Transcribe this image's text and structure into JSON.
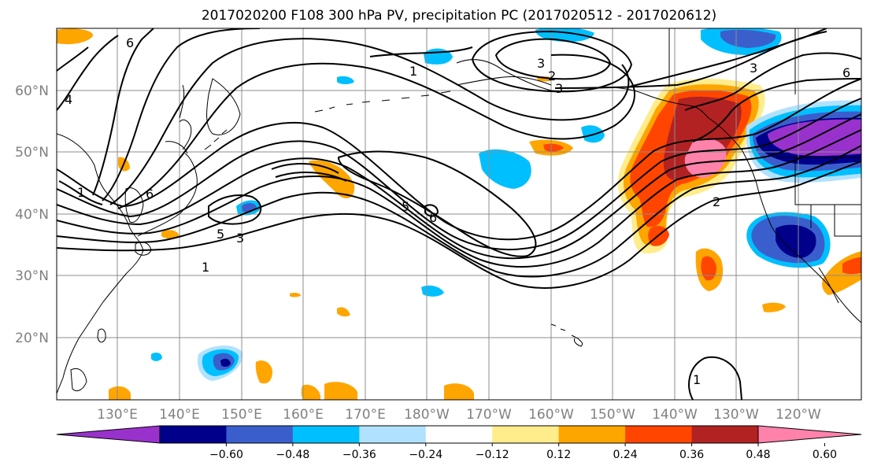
{
  "title": "2017020200 F108 300 hPa PV, precipitation PC (2017020512 - 2017020612)",
  "lat_labels": [
    "60°N",
    "50°N",
    "40°N",
    "30°N",
    "20°N"
  ],
  "lon_labels": [
    "130°E",
    "140°E",
    "150°E",
    "160°E",
    "170°E",
    "180°W",
    "170°W",
    "160°W",
    "150°W",
    "140°W",
    "130°W",
    "120°W"
  ],
  "colorbar": {
    "colors": [
      "#9932cc",
      "#00008b",
      "#3a5fcd",
      "#00bfff",
      "#b0e2ff",
      "#ffffff",
      "#ffec8b",
      "#ffa500",
      "#ff4500",
      "#b22222",
      "#ff82ab"
    ],
    "ticks": [
      "−0.60",
      "−0.48",
      "−0.36",
      "−0.24",
      "−0.12",
      "0.12",
      "0.24",
      "0.36",
      "0.48",
      "0.60"
    ]
  },
  "contour_labels": [
    "6",
    "4",
    "1",
    "6",
    "5",
    "3",
    "1",
    "1",
    "3",
    "2",
    "3",
    "5",
    "6",
    "2",
    "3",
    "6",
    "1"
  ]
}
